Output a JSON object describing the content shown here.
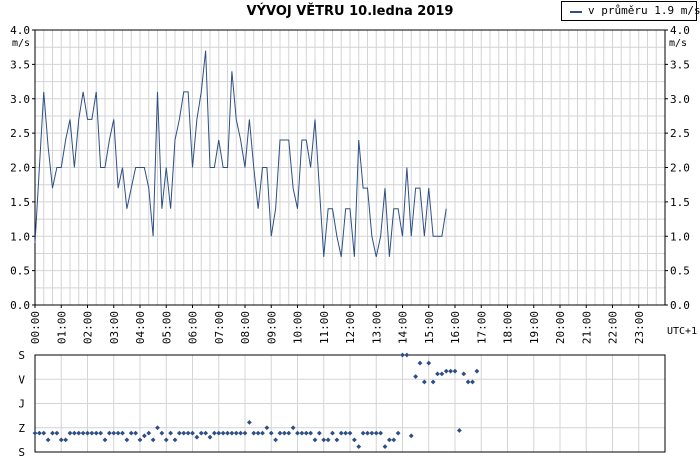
{
  "title": "VÝVOJ VĚTRU  10.ledna 2019",
  "legend": {
    "label": "v průměru 1.9 m/s"
  },
  "y_unit_left": "m/s",
  "y_unit_right": "m/s",
  "timezone_label": "UTC+1",
  "colors": {
    "line": "#2d4f86",
    "grid": "#d4d4d4",
    "dots": "#2d4f86"
  },
  "chart_data": [
    {
      "type": "line",
      "title": "VÝVOJ VĚTRU  10.ledna 2019",
      "ylabel": "m/s",
      "ylim": [
        0,
        4
      ],
      "yticks": [
        "0.0",
        "0.5",
        "1.0",
        "1.5",
        "2.0",
        "2.5",
        "3.0",
        "3.5",
        "4.0"
      ],
      "xticks": [
        "00:00",
        "01:00",
        "02:00",
        "03:00",
        "04:00",
        "05:00",
        "06:00",
        "07:00",
        "08:00",
        "09:00",
        "10:00",
        "11:00",
        "12:00",
        "13:00",
        "14:00",
        "15:00",
        "16:00",
        "17:00",
        "18:00",
        "19:00",
        "20:00",
        "21:00",
        "22:00",
        "23:00"
      ],
      "x_step_minutes": 10,
      "series": [
        {
          "name": "v průměru 1.9 m/s",
          "values": [
            0.9,
            2.0,
            3.1,
            2.3,
            1.7,
            2.0,
            2.0,
            2.4,
            2.7,
            2.0,
            2.7,
            3.1,
            2.7,
            2.7,
            3.1,
            2.0,
            2.0,
            2.4,
            2.7,
            1.7,
            2.0,
            1.4,
            1.7,
            2.0,
            2.0,
            2.0,
            1.7,
            1.0,
            3.1,
            1.4,
            2.0,
            1.4,
            2.4,
            2.7,
            3.1,
            3.1,
            2.0,
            2.7,
            3.1,
            3.7,
            2.0,
            2.0,
            2.4,
            2.0,
            2.0,
            3.4,
            2.7,
            2.4,
            2.0,
            2.7,
            2.0,
            1.4,
            2.0,
            2.0,
            1.0,
            1.4,
            2.4,
            2.4,
            2.4,
            1.7,
            1.4,
            2.4,
            2.4,
            2.0,
            2.7,
            1.7,
            0.7,
            1.4,
            1.4,
            1.0,
            0.7,
            1.4,
            1.4,
            0.7,
            2.4,
            1.7,
            1.7,
            1.0,
            0.7,
            1.0,
            1.7,
            0.7,
            1.4,
            1.4,
            1.0,
            2.0,
            1.0,
            1.7,
            1.7,
            1.0,
            1.7,
            1.0,
            1.0,
            1.0,
            1.4
          ]
        }
      ]
    },
    {
      "type": "scatter",
      "ylabel": "direction",
      "yticks": [
        "S",
        "V",
        "J",
        "Z",
        "S"
      ],
      "ylim": [
        0,
        360
      ],
      "x_step_minutes": 10,
      "series": [
        {
          "name": "",
          "values": [
            70,
            70,
            70,
            45,
            70,
            70,
            45,
            45,
            70,
            70,
            70,
            70,
            70,
            70,
            70,
            70,
            45,
            70,
            70,
            70,
            70,
            45,
            70,
            70,
            45,
            60,
            70,
            45,
            90,
            70,
            45,
            70,
            45,
            70,
            70,
            70,
            70,
            55,
            70,
            70,
            55,
            70,
            70,
            70,
            70,
            70,
            70,
            70,
            70,
            110,
            70,
            70,
            70,
            90,
            70,
            45,
            70,
            70,
            70,
            90,
            70,
            70,
            70,
            70,
            45,
            70,
            45,
            45,
            70,
            45,
            70,
            70,
            70,
            45,
            20,
            70,
            70,
            70,
            70,
            70,
            20,
            45,
            45,
            70,
            360,
            360,
            60,
            280,
            330,
            260,
            330,
            260,
            290,
            290,
            300,
            300,
            300,
            80,
            290,
            260,
            260,
            300
          ]
        }
      ]
    }
  ]
}
